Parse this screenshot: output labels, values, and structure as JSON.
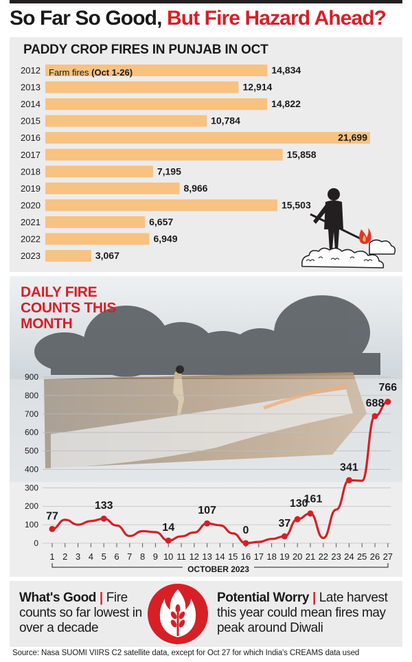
{
  "headline": {
    "part1": "So Far So Good,",
    "part2": "But Fire Hazard Ahead?"
  },
  "colors": {
    "accent_red": "#d71f26",
    "bar_orange": "#f8c280",
    "text_dark": "#1a1a1a"
  },
  "bar_chart_title": "PADDY CROP FIRES IN PUNJAB IN OCT",
  "bar_legend_label": "Farm fires",
  "bar_legend_sub": "(Oct 1-26)",
  "line_chart_title": "DAILY FIRE\nCOUNTS THIS\nMONTH",
  "x_axis_label": "OCTOBER 2023",
  "chart_data": [
    {
      "type": "bar",
      "orientation": "horizontal",
      "title": "PADDY CROP FIRES IN PUNJAB IN OCT",
      "categories": [
        "2012",
        "2013",
        "2014",
        "2015",
        "2016",
        "2017",
        "2018",
        "2019",
        "2020",
        "2021",
        "2022",
        "2023"
      ],
      "series": [
        {
          "name": "Farm fires (Oct 1-26)",
          "values": [
            14834,
            12914,
            14822,
            10784,
            21699,
            15858,
            7195,
            8966,
            15503,
            6657,
            6949,
            3067
          ]
        }
      ],
      "value_labels": [
        "14,834",
        "12,914",
        "14,822",
        "10,784",
        "21,699",
        "15,858",
        "7,195",
        "8,966",
        "15,503",
        "6,657",
        "6,949",
        "3,067"
      ],
      "highlight_max": "2016"
    },
    {
      "type": "line",
      "title": "DAILY FIRE COUNTS THIS MONTH",
      "xlabel": "OCTOBER 2023",
      "x": [
        1,
        2,
        3,
        4,
        5,
        6,
        7,
        8,
        9,
        10,
        11,
        12,
        13,
        14,
        15,
        16,
        17,
        18,
        19,
        20,
        21,
        22,
        23,
        24,
        25,
        26,
        27
      ],
      "values": [
        77,
        127,
        100,
        120,
        133,
        96,
        39,
        65,
        60,
        14,
        37,
        58,
        107,
        97,
        53,
        0,
        7,
        23,
        37,
        130,
        161,
        28,
        182,
        341,
        338,
        688,
        766
      ],
      "labeled_points": [
        {
          "x": 1,
          "label": "77"
        },
        {
          "x": 5,
          "label": "133"
        },
        {
          "x": 10,
          "label": "14"
        },
        {
          "x": 13,
          "label": "107"
        },
        {
          "x": 16,
          "label": "0"
        },
        {
          "x": 19,
          "label": "37"
        },
        {
          "x": 20,
          "label": "130"
        },
        {
          "x": 21,
          "label": "161"
        },
        {
          "x": 24,
          "label": "341"
        },
        {
          "x": 26,
          "label": "688"
        },
        {
          "x": 27,
          "label": "766"
        }
      ],
      "yticks": [
        0,
        100,
        200,
        300,
        400,
        500,
        600,
        700,
        800,
        900
      ],
      "ylim": [
        0,
        900
      ],
      "grid": true
    }
  ],
  "whats_good": {
    "heading": "What's Good",
    "sep": "|",
    "text": "Fire counts so far lowest in over a decade"
  },
  "potential_worry": {
    "heading": "Potential Worry",
    "sep": "|",
    "text": "Late harvest this year could mean fires may peak around Diwali"
  },
  "source": "Source: Nasa SUOMI VIIRS C2 satellite data, except for Oct 27 for which India's CREAMS data used"
}
